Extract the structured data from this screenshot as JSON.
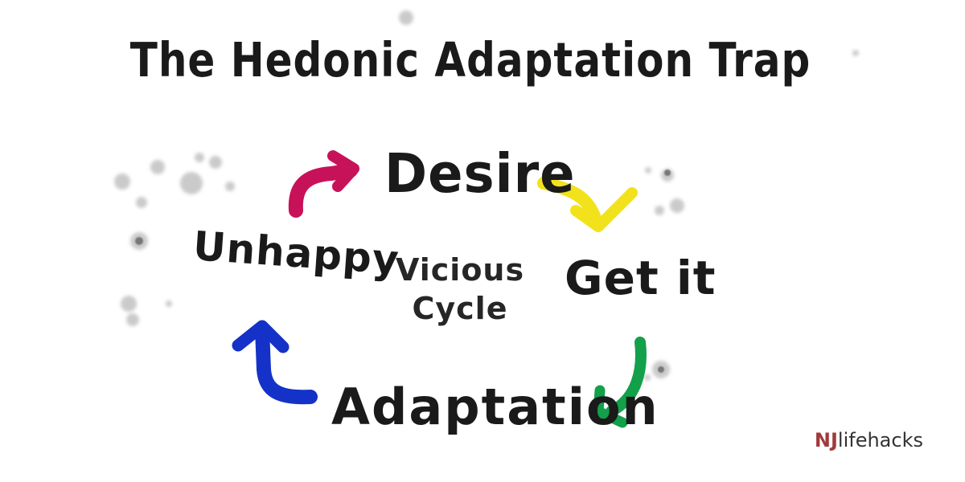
{
  "title": "The Hedonic Adaptation Trap",
  "cycle": {
    "nodes": [
      {
        "id": "desire",
        "label": "Desire"
      },
      {
        "id": "get-it",
        "label": "Get it"
      },
      {
        "id": "adaptation",
        "label": "Adaptation"
      },
      {
        "id": "unhappy",
        "label": "Unhappy"
      }
    ],
    "center_label": "Vicious Cycle",
    "arrows": [
      {
        "from": "unhappy",
        "to": "desire",
        "color": "#c7125a",
        "icon": "curved-arrow-icon"
      },
      {
        "from": "desire",
        "to": "get-it",
        "color": "#f2e21c",
        "icon": "curved-arrow-icon"
      },
      {
        "from": "get-it",
        "to": "adaptation",
        "color": "#12a04a",
        "icon": "curved-arrow-icon"
      },
      {
        "from": "adaptation",
        "to": "unhappy",
        "color": "#1432c8",
        "icon": "curved-arrow-icon"
      }
    ]
  },
  "credit": {
    "prefix": "NJ",
    "suffix": "lifehacks"
  },
  "colors": {
    "ink": "#1a1a1a",
    "splatter": "#b9b9b9",
    "credit_prefix": "#a03b3b"
  }
}
